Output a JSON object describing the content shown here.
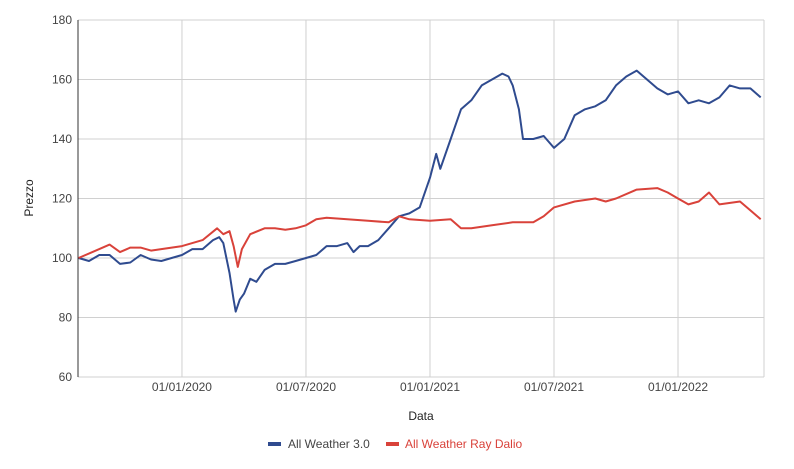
{
  "chart_data": {
    "type": "line",
    "title": "",
    "xlabel": "Data",
    "ylabel": "Prezzo",
    "x_units": "months since 01/01/2020",
    "xlim": [
      -5.03,
      28.16
    ],
    "ylim": [
      60,
      180
    ],
    "yticks": [
      60,
      80,
      100,
      120,
      140,
      160,
      180
    ],
    "xticks": [
      {
        "value": 0,
        "label": "01/01/2020"
      },
      {
        "value": 6,
        "label": "01/07/2020"
      },
      {
        "value": 12,
        "label": "01/01/2021"
      },
      {
        "value": 18,
        "label": "01/07/2021"
      },
      {
        "value": 24,
        "label": "01/01/2022"
      }
    ],
    "grid": true,
    "legend_position": "bottom",
    "series": [
      {
        "name": "All Weather 3.0",
        "color": "#2f4b8f",
        "x": [
          -5,
          -4.5,
          -4,
          -3.5,
          -3,
          -2.5,
          -2,
          -1.5,
          -1,
          -0.5,
          0,
          0.5,
          1,
          1.5,
          1.8,
          2,
          2.3,
          2.5,
          2.6,
          2.8,
          3,
          3.3,
          3.6,
          4,
          4.5,
          5,
          5.5,
          6,
          6.5,
          7,
          7.5,
          8,
          8.3,
          8.6,
          9,
          9.5,
          10,
          10.5,
          11,
          11.5,
          12,
          12.3,
          12.5,
          13,
          13.5,
          14,
          14.5,
          15,
          15.5,
          15.8,
          16,
          16.3,
          16.5,
          17,
          17.5,
          18,
          18.5,
          19,
          19.5,
          20,
          20.5,
          21,
          21.5,
          22,
          22.5,
          23,
          23.5,
          24,
          24.5,
          25,
          25.5,
          26,
          26.5,
          27,
          27.5,
          28
        ],
        "y": [
          100,
          99,
          101,
          101,
          98,
          98.5,
          101,
          99.5,
          99,
          100,
          101,
          103,
          103,
          106,
          107,
          105,
          95,
          86,
          82,
          86,
          88,
          93,
          92,
          96,
          98,
          98,
          99,
          100,
          101,
          104,
          104,
          105,
          102,
          104,
          104,
          106,
          110,
          114,
          115,
          117,
          127,
          135,
          130,
          140,
          150,
          153,
          158,
          160,
          162,
          161,
          158,
          150,
          140,
          140,
          141,
          137,
          140,
          148,
          150,
          151,
          153,
          158,
          161,
          163,
          160,
          157,
          155,
          156,
          152,
          153,
          152,
          154,
          158,
          157,
          157,
          154
        ]
      },
      {
        "name": "All Weather Ray Dalio",
        "color": "#d9423a",
        "x": [
          -5,
          -4,
          -3.5,
          -3,
          -2.5,
          -2,
          -1.5,
          -1,
          0,
          1,
          1.7,
          2,
          2.3,
          2.5,
          2.7,
          2.9,
          3.3,
          4,
          4.5,
          5,
          5.5,
          6,
          6.5,
          7,
          8,
          9,
          10,
          10.5,
          11,
          12,
          13,
          13.5,
          14,
          15,
          16,
          17,
          17.5,
          18,
          19,
          20,
          20.5,
          21,
          22,
          23,
          23.5,
          24,
          24.5,
          25,
          25.5,
          26,
          27,
          27.5,
          28
        ],
        "y": [
          100,
          103,
          104.5,
          102,
          103.5,
          103.5,
          102.5,
          103,
          104,
          106,
          110,
          108,
          109,
          104,
          97,
          103,
          108,
          110,
          110,
          109.5,
          110,
          111,
          113,
          113.5,
          113,
          112.5,
          112,
          114,
          113,
          112.5,
          113,
          110,
          110,
          111,
          112,
          112,
          114,
          117,
          119,
          120,
          119,
          120,
          123,
          123.5,
          122,
          120,
          118,
          119,
          122,
          118,
          119,
          116,
          113
        ]
      }
    ]
  }
}
